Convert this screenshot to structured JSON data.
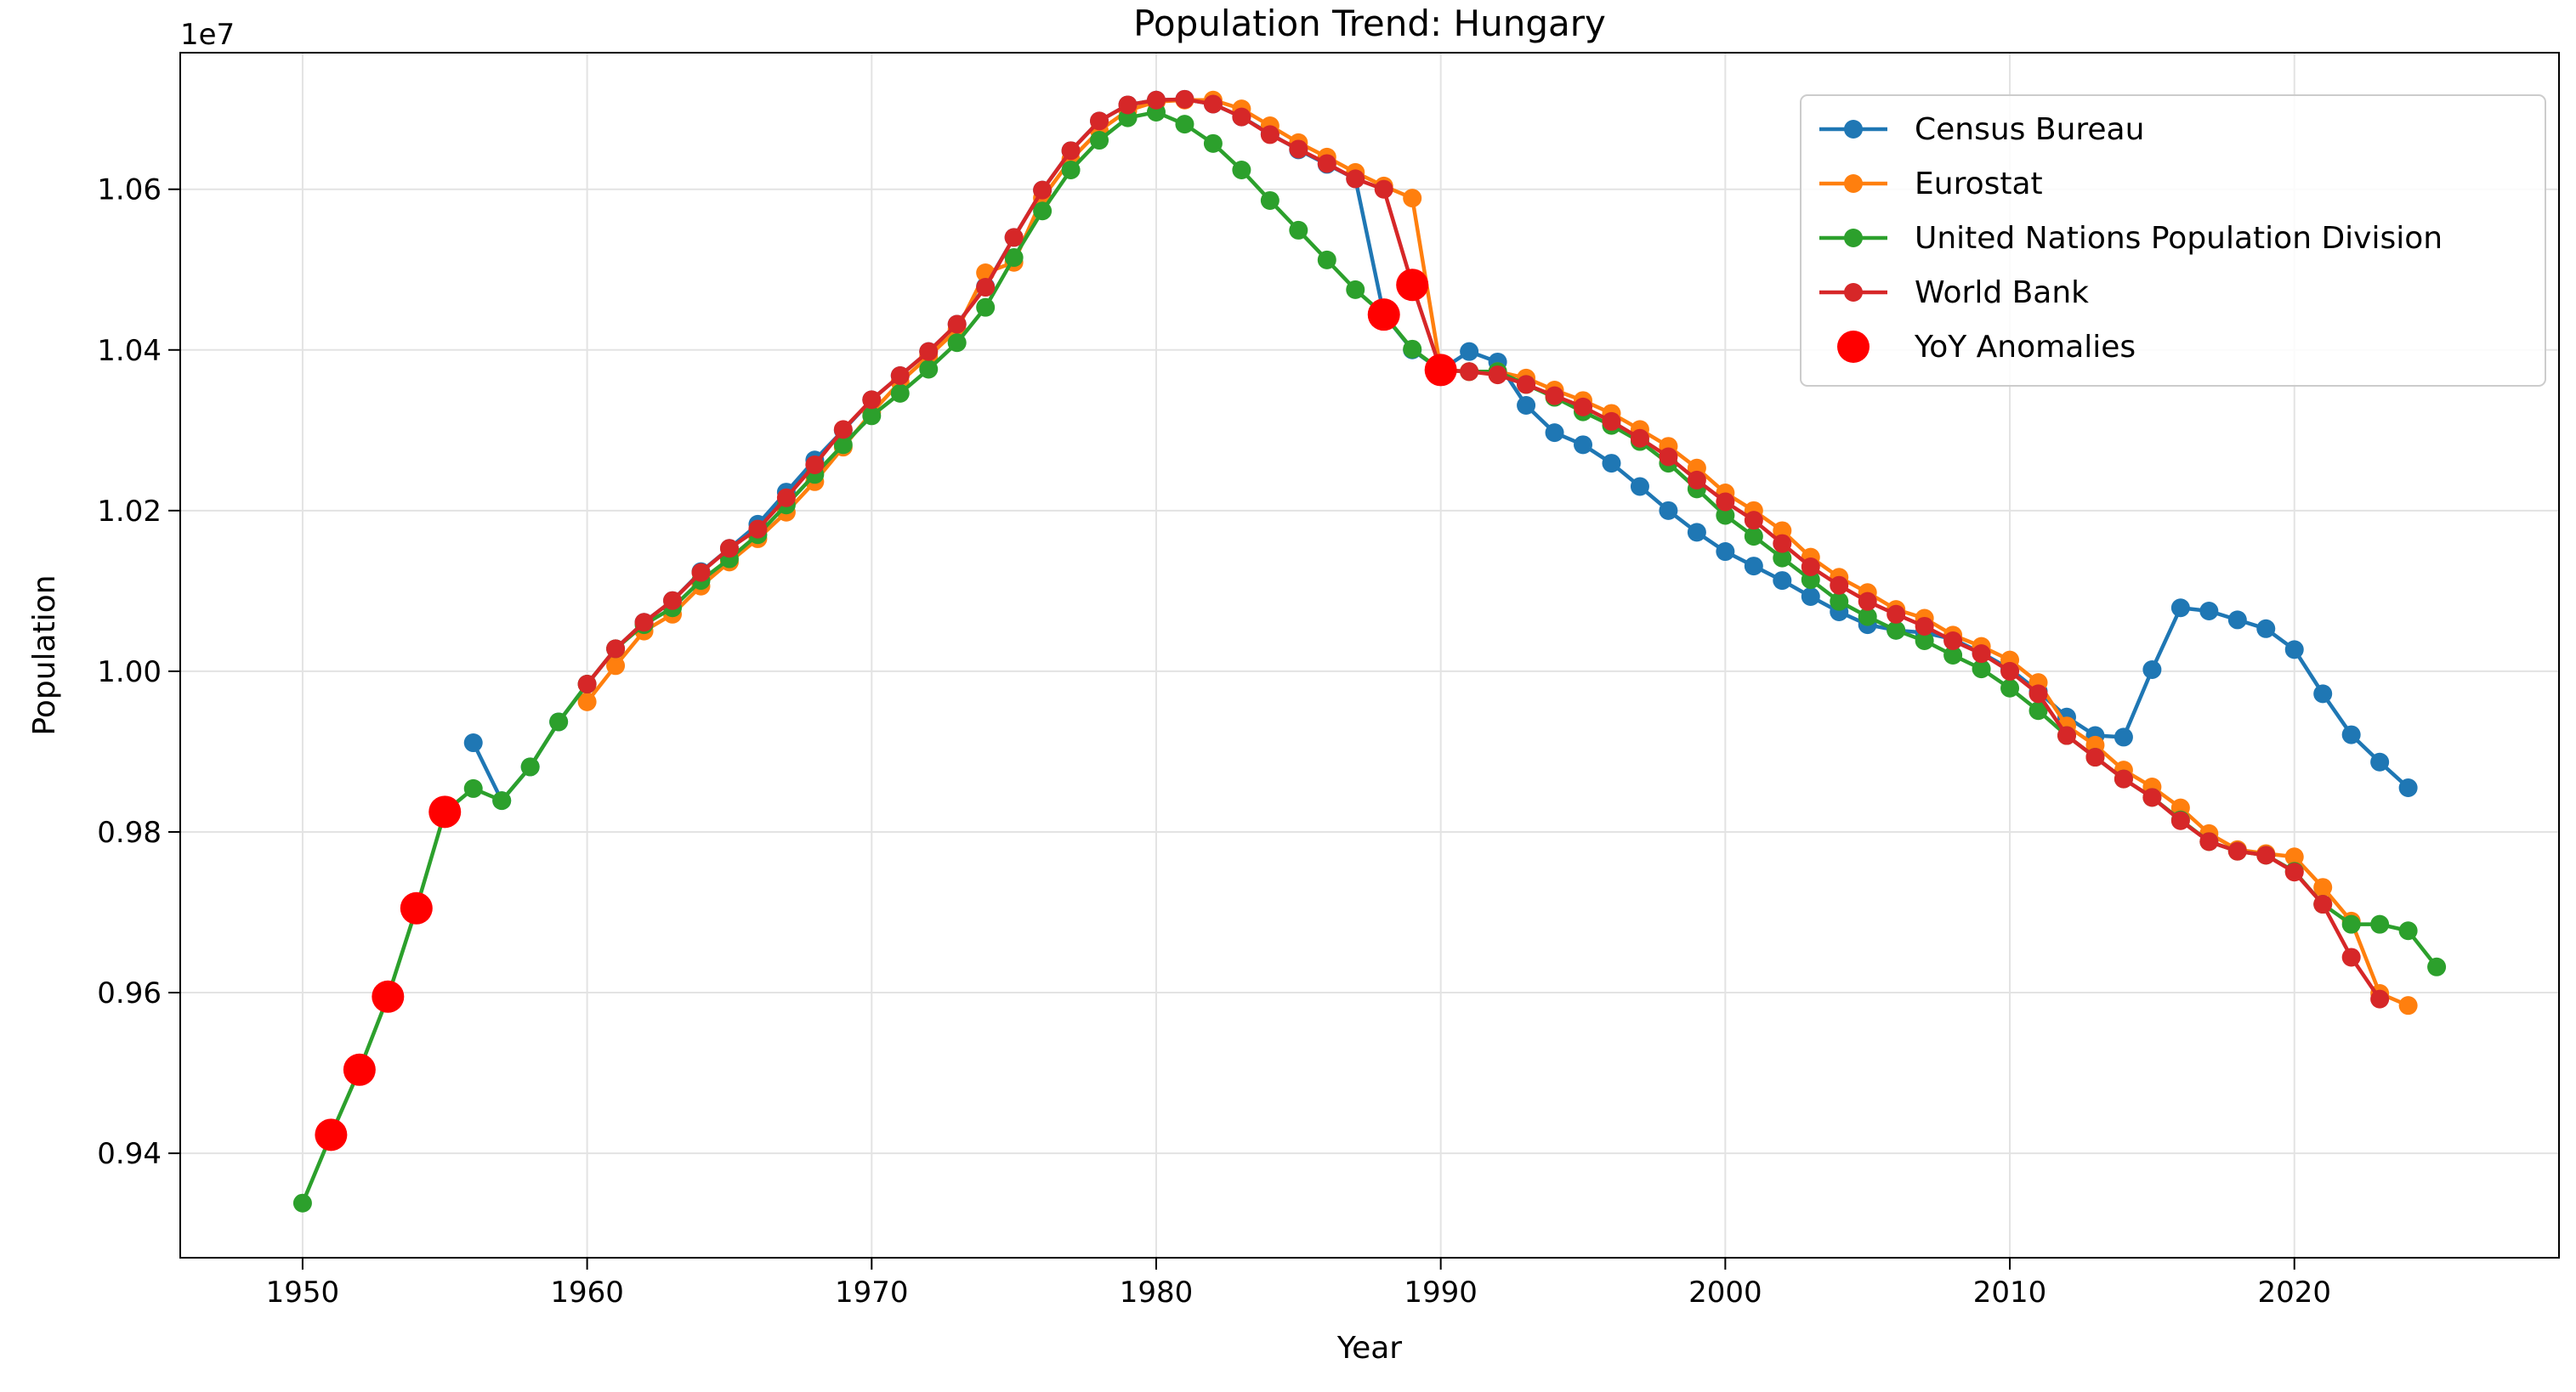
{
  "chart_data": {
    "type": "line",
    "title": "Population Trend: Hungary",
    "xlabel": "Year",
    "ylabel": "Population",
    "y_offset_label": "1e7",
    "xlim": [
      1945.7,
      2029.3
    ],
    "ylim": [
      9270000,
      10770000
    ],
    "x_ticks": [
      1950,
      1960,
      1970,
      1980,
      1990,
      2000,
      2010,
      2020
    ],
    "y_ticks": [
      9400000,
      9600000,
      9800000,
      10000000,
      10200000,
      10400000,
      10600000
    ],
    "y_tick_labels": [
      "0.94",
      "0.96",
      "0.98",
      "1.00",
      "1.02",
      "1.04",
      "1.06"
    ],
    "grid": true,
    "legend_position": "top-right",
    "series": [
      {
        "name": "Census Bureau",
        "color": "#1f77b4",
        "x": [
          1956,
          1957,
          1958,
          1959,
          1960,
          1961,
          1962,
          1963,
          1964,
          1965,
          1966,
          1967,
          1968,
          1969,
          1970,
          1971,
          1972,
          1973,
          1974,
          1975,
          1976,
          1977,
          1978,
          1979,
          1980,
          1981,
          1982,
          1983,
          1984,
          1985,
          1986,
          1987,
          1988,
          1989,
          1990,
          1991,
          1992,
          1993,
          1994,
          1995,
          1996,
          1997,
          1998,
          1999,
          2000,
          2001,
          2002,
          2003,
          2004,
          2005,
          2006,
          2007,
          2008,
          2009,
          2010,
          2011,
          2012,
          2013,
          2014,
          2015,
          2016,
          2017,
          2018,
          2019,
          2020,
          2021,
          2022,
          2023,
          2024
        ],
        "y": [
          9911000,
          9839000,
          9881000,
          9937000,
          9984000,
          10028000,
          10061000,
          10088000,
          10124000,
          10153000,
          10183000,
          10223000,
          10263000,
          10300000,
          10338000,
          10368000,
          10398000,
          10432000,
          10479000,
          10540000,
          10599000,
          10648000,
          10685000,
          10705000,
          10711000,
          10712000,
          10706000,
          10690000,
          10669000,
          10649000,
          10631000,
          10613000,
          10444000,
          10400000,
          10375000,
          10398000,
          10385000,
          10331000,
          10297000,
          10282000,
          10259000,
          10230000,
          10200000,
          10173000,
          10149000,
          10131000,
          10113000,
          10093000,
          10074000,
          10058000,
          10051000,
          10048000,
          10040000,
          10023000,
          10003000,
          9975000,
          9943000,
          9920000,
          9918000,
          10002000,
          10079000,
          10075000,
          10064000,
          10053000,
          10027000,
          9972000,
          9921000,
          9887000,
          9855000
        ]
      },
      {
        "name": "Eurostat",
        "color": "#ff7f0e",
        "x": [
          1960,
          1961,
          1962,
          1963,
          1964,
          1965,
          1966,
          1967,
          1968,
          1969,
          1970,
          1971,
          1972,
          1973,
          1974,
          1975,
          1976,
          1977,
          1978,
          1979,
          1980,
          1981,
          1982,
          1983,
          1984,
          1985,
          1986,
          1987,
          1988,
          1989,
          1990,
          1991,
          1992,
          1993,
          1994,
          1995,
          1996,
          1997,
          1998,
          1999,
          2000,
          2001,
          2002,
          2003,
          2004,
          2005,
          2006,
          2007,
          2008,
          2009,
          2010,
          2011,
          2012,
          2013,
          2014,
          2015,
          2016,
          2017,
          2018,
          2019,
          2020,
          2021,
          2022,
          2023,
          2024
        ],
        "y": [
          9962000,
          10007000,
          10050000,
          10071000,
          10106000,
          10136000,
          10165000,
          10198000,
          10236000,
          10279000,
          10322000,
          10360000,
          10392000,
          10425000,
          10496000,
          10509000,
          10589000,
          10637000,
          10673000,
          10698000,
          10709000,
          10711000,
          10711000,
          10700000,
          10679000,
          10658000,
          10640000,
          10621000,
          10604000,
          10589000,
          10375000,
          10373000,
          10373000,
          10365000,
          10350000,
          10337000,
          10321000,
          10301000,
          10280000,
          10253000,
          10222000,
          10200000,
          10175000,
          10142000,
          10117000,
          10098000,
          10077000,
          10066000,
          10045000,
          10031000,
          10014000,
          9986000,
          9932000,
          9908000,
          9877000,
          9856000,
          9830000,
          9798000,
          9778000,
          9773000,
          9769000,
          9731000,
          9689000,
          9599000,
          9584000
        ]
      },
      {
        "name": "United Nations Population Division",
        "color": "#2ca02c",
        "x": [
          1950,
          1951,
          1952,
          1953,
          1954,
          1955,
          1956,
          1957,
          1958,
          1959,
          1960,
          1961,
          1962,
          1963,
          1964,
          1965,
          1966,
          1967,
          1968,
          1969,
          1970,
          1971,
          1972,
          1973,
          1974,
          1975,
          1976,
          1977,
          1978,
          1979,
          1980,
          1981,
          1982,
          1983,
          1984,
          1985,
          1986,
          1987,
          1988,
          1989,
          1990,
          1991,
          1992,
          1993,
          1994,
          1995,
          1996,
          1997,
          1998,
          1999,
          2000,
          2001,
          2002,
          2003,
          2004,
          2005,
          2006,
          2007,
          2008,
          2009,
          2010,
          2011,
          2012,
          2013,
          2014,
          2015,
          2016,
          2017,
          2018,
          2019,
          2020,
          2021,
          2022,
          2023,
          2024,
          2025
        ],
        "y": [
          9338000,
          9423000,
          9504000,
          9595000,
          9705000,
          9825000,
          9854000,
          9839000,
          9881000,
          9937000,
          9984000,
          10028000,
          10058000,
          10079000,
          10113000,
          10140000,
          10170000,
          10207000,
          10245000,
          10282000,
          10318000,
          10346000,
          10376000,
          10409000,
          10453000,
          10515000,
          10573000,
          10624000,
          10661000,
          10689000,
          10696000,
          10681000,
          10657000,
          10624000,
          10586000,
          10549000,
          10512000,
          10475000,
          10444000,
          10401000,
          10375000,
          10373000,
          10373000,
          10357000,
          10341000,
          10323000,
          10306000,
          10286000,
          10259000,
          10227000,
          10194000,
          10168000,
          10141000,
          10114000,
          10087000,
          10068000,
          10051000,
          10038000,
          10020000,
          10003000,
          9979000,
          9951000,
          9920000,
          9893000,
          9866000,
          9843000,
          9815000,
          9788000,
          9776000,
          9771000,
          9751000,
          9710000,
          9685000,
          9685000,
          9677000,
          9632000
        ]
      },
      {
        "name": "World Bank",
        "color": "#d62728",
        "x": [
          1960,
          1961,
          1962,
          1963,
          1964,
          1965,
          1966,
          1967,
          1968,
          1969,
          1970,
          1971,
          1972,
          1973,
          1974,
          1975,
          1976,
          1977,
          1978,
          1979,
          1980,
          1981,
          1982,
          1983,
          1984,
          1985,
          1986,
          1987,
          1988,
          1989,
          1990,
          1991,
          1992,
          1993,
          1994,
          1995,
          1996,
          1997,
          1998,
          1999,
          2000,
          2001,
          2002,
          2003,
          2004,
          2005,
          2006,
          2007,
          2008,
          2009,
          2010,
          2011,
          2012,
          2013,
          2014,
          2015,
          2016,
          2017,
          2018,
          2019,
          2020,
          2021,
          2022,
          2023
        ],
        "y": [
          9984000,
          10028000,
          10061000,
          10088000,
          10123000,
          10153000,
          10177000,
          10216000,
          10257000,
          10301000,
          10338000,
          10368000,
          10398000,
          10432000,
          10478000,
          10540000,
          10599000,
          10648000,
          10685000,
          10705000,
          10711000,
          10712000,
          10706000,
          10690000,
          10668000,
          10650000,
          10632000,
          10613000,
          10600000,
          10481000,
          10375000,
          10373000,
          10369000,
          10357000,
          10343000,
          10329000,
          10311000,
          10290000,
          10267000,
          10238000,
          10211000,
          10188000,
          10159000,
          10130000,
          10107000,
          10087000,
          10071000,
          10056000,
          10038000,
          10022000,
          10000000,
          9972000,
          9920000,
          9893000,
          9866000,
          9843000,
          9814000,
          9788000,
          9776000,
          9771000,
          9750000,
          9710000,
          9644000,
          9592000
        ]
      }
    ],
    "anomalies": {
      "name": "YoY Anomalies",
      "color": "#ff0000",
      "x": [
        1951,
        1952,
        1953,
        1954,
        1955,
        1988,
        1989,
        1990
      ],
      "y": [
        9423000,
        9504000,
        9595000,
        9705000,
        9825000,
        10444000,
        10481000,
        10375000
      ]
    }
  }
}
